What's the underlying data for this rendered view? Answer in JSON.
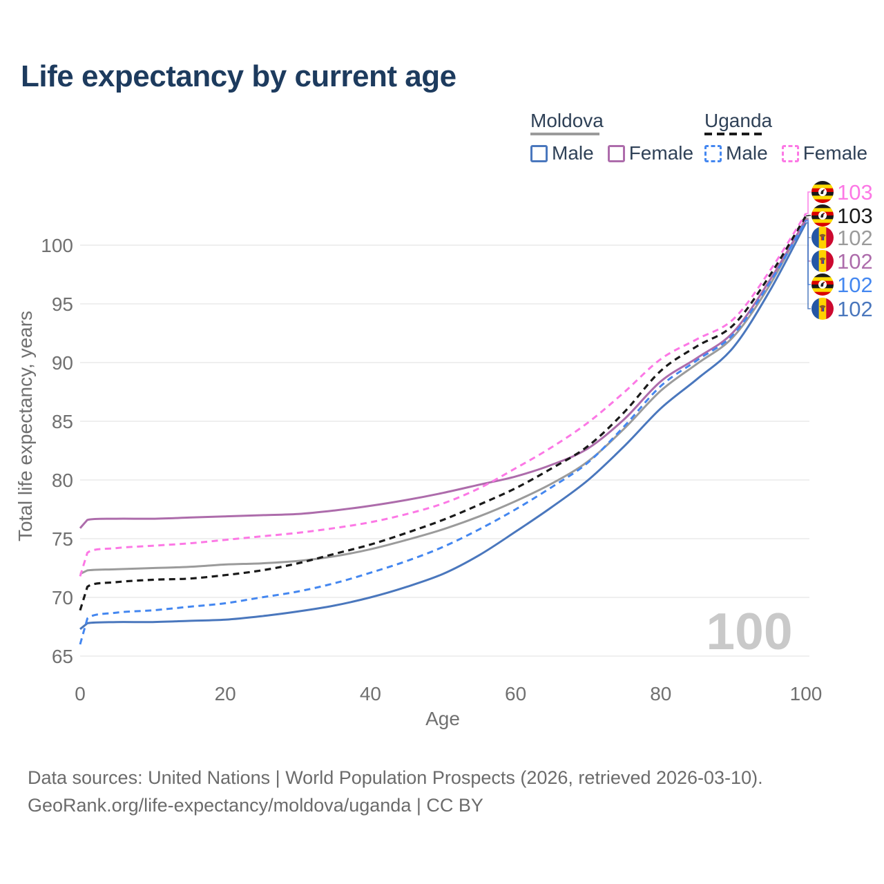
{
  "title": "Life expectancy by current age",
  "legend": {
    "groups": [
      {
        "country": "Moldova",
        "line_style": "solid",
        "line_color": "#9b9b9b",
        "items": [
          {
            "label": "Male",
            "color": "#4a77bd",
            "dashed": false
          },
          {
            "label": "Female",
            "color": "#ad6cab",
            "dashed": false
          }
        ]
      },
      {
        "country": "Uganda",
        "line_style": "dashed",
        "line_color": "#1a1a1a",
        "items": [
          {
            "label": "Male",
            "color": "#4487f0",
            "dashed": true
          },
          {
            "label": "Female",
            "color": "#fc78e5",
            "dashed": true
          }
        ]
      }
    ]
  },
  "chart_data": {
    "type": "line",
    "title": "Life expectancy by current age",
    "xlabel": "Age",
    "ylabel": "Total life expectancy, years",
    "xlim": [
      0,
      100
    ],
    "ylim": [
      65,
      100
    ],
    "xticks": [
      0,
      20,
      40,
      60,
      80,
      100
    ],
    "yticks": [
      65,
      70,
      75,
      80,
      85,
      90,
      95,
      100
    ],
    "grid": "horizontal",
    "legend_position": "top-right",
    "watermark": "100",
    "x": [
      0,
      1,
      5,
      10,
      15,
      20,
      25,
      30,
      35,
      40,
      45,
      50,
      55,
      60,
      65,
      70,
      75,
      80,
      85,
      90,
      95,
      100
    ],
    "series": [
      {
        "name": "Moldova",
        "country": "moldova",
        "color": "#9b9b9b",
        "dashed": false,
        "end_label": "102",
        "values": [
          72.0,
          72.3,
          72.4,
          72.5,
          72.6,
          72.8,
          72.9,
          73.1,
          73.5,
          74.1,
          74.9,
          75.8,
          76.9,
          78.2,
          79.7,
          81.6,
          84.4,
          87.6,
          89.9,
          92.2,
          96.6,
          102.3
        ]
      },
      {
        "name": "Moldova Male",
        "country": "moldova",
        "color": "#4a77bd",
        "dashed": false,
        "end_label": "102",
        "values": [
          67.3,
          67.8,
          67.9,
          67.9,
          68.0,
          68.1,
          68.4,
          68.8,
          69.3,
          70.0,
          70.9,
          72.0,
          73.6,
          75.6,
          77.7,
          80.0,
          82.9,
          86.1,
          88.6,
          91.3,
          96.1,
          101.9
        ]
      },
      {
        "name": "Moldova Female",
        "country": "moldova",
        "color": "#ad6cab",
        "dashed": false,
        "end_label": "102",
        "values": [
          75.9,
          76.6,
          76.7,
          76.7,
          76.8,
          76.9,
          77.0,
          77.1,
          77.4,
          77.8,
          78.3,
          78.9,
          79.6,
          80.3,
          81.3,
          82.7,
          85.2,
          88.4,
          90.4,
          92.6,
          97.0,
          102.2
        ]
      },
      {
        "name": "Uganda",
        "country": "uganda",
        "color": "#1a1a1a",
        "dashed": true,
        "end_label": "103",
        "values": [
          68.9,
          70.9,
          71.3,
          71.5,
          71.6,
          71.9,
          72.3,
          72.9,
          73.7,
          74.5,
          75.5,
          76.6,
          77.9,
          79.3,
          81.0,
          82.9,
          85.8,
          89.3,
          91.4,
          93.2,
          97.4,
          102.5
        ]
      },
      {
        "name": "Uganda Male",
        "country": "uganda",
        "color": "#4487f0",
        "dashed": true,
        "end_label": "102",
        "values": [
          66.0,
          68.2,
          68.7,
          68.9,
          69.2,
          69.5,
          70.0,
          70.5,
          71.2,
          72.1,
          73.1,
          74.3,
          75.8,
          77.5,
          79.4,
          81.5,
          84.6,
          88.0,
          90.2,
          92.4,
          96.8,
          102.1
        ]
      },
      {
        "name": "Uganda Female",
        "country": "uganda",
        "color": "#fc78e5",
        "dashed": true,
        "end_label": "103",
        "values": [
          71.8,
          73.8,
          74.2,
          74.4,
          74.6,
          74.9,
          75.2,
          75.5,
          75.9,
          76.4,
          77.1,
          78.0,
          79.3,
          81.0,
          82.8,
          84.9,
          87.5,
          90.3,
          92.0,
          93.7,
          97.8,
          102.7
        ]
      }
    ]
  },
  "flags": {
    "uganda": {
      "stripes": [
        "#1a1a1a",
        "#fcdc04",
        "#d90000",
        "#1a1a1a",
        "#fcdc04",
        "#d90000"
      ]
    },
    "moldova": {
      "stripes": [
        "#2456a5",
        "#ffd200",
        "#cc092f"
      ]
    }
  },
  "footer": {
    "line1": "Data sources: United Nations | World Population Prospects (2026, retrieved 2026-03-10).",
    "line2": "GeoRank.org/life-expectancy/moldova/uganda | CC BY"
  }
}
